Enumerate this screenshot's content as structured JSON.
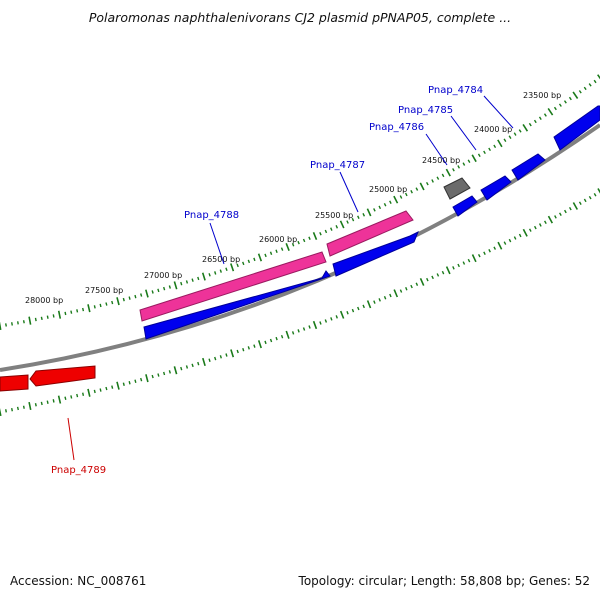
{
  "title": "Polaromonas naphthalenivorans CJ2 plasmid pPNAP05, complete ...",
  "accession_text": "Accession: NC_008761",
  "summary_text": "Topology: circular; Length: 58,808 bp; Genes: 52",
  "colors": {
    "backbone": "#808080",
    "tick": "#1a7a1a",
    "forward_gene": "#0000ee",
    "forward_label": "#0000cc",
    "pink_gene": "#ee3399",
    "grey_gene": "#6b6b6b",
    "reverse_gene": "#ee0000",
    "reverse_label": "#cc0000"
  },
  "ticks": [
    {
      "label": "23500 bp"
    },
    {
      "label": "24000 bp"
    },
    {
      "label": "24500 bp"
    },
    {
      "label": "25000 bp"
    },
    {
      "label": "25500 bp"
    },
    {
      "label": "26000 bp"
    },
    {
      "label": "26500 bp"
    },
    {
      "label": "27000 bp"
    },
    {
      "label": "27500 bp"
    },
    {
      "label": "28000 bp"
    }
  ],
  "gene_labels": [
    {
      "name": "Pnap_4784",
      "strand": "forward"
    },
    {
      "name": "Pnap_4785",
      "strand": "forward"
    },
    {
      "name": "Pnap_4786",
      "strand": "forward"
    },
    {
      "name": "Pnap_4787",
      "strand": "forward"
    },
    {
      "name": "Pnap_4788",
      "strand": "forward"
    },
    {
      "name": "Pnap_4789",
      "strand": "reverse"
    }
  ]
}
